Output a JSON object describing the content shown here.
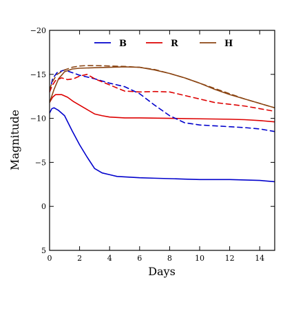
{
  "chart_data": {
    "type": "line",
    "xlabel": "Days",
    "ylabel": "Magnitude",
    "xlim": [
      0,
      15
    ],
    "ylim": [
      5,
      -20
    ],
    "y_inverted": true,
    "xticks": [
      0,
      2,
      4,
      6,
      8,
      10,
      12,
      14
    ],
    "yticks": [
      -20,
      -15,
      -10,
      -5,
      0,
      5
    ],
    "xtick_labels": [
      "0",
      "2",
      "4",
      "6",
      "8",
      "10",
      "12",
      "14"
    ],
    "ytick_labels": [
      "−20",
      "−15",
      "−10",
      "−5",
      "0",
      "5"
    ],
    "grid": false,
    "legend_position": "top",
    "legend": [
      "B",
      "R",
      "H"
    ],
    "series": [
      {
        "name": "B",
        "color": "#0000cc",
        "dash": "solid",
        "x": [
          0,
          0.15,
          0.3,
          0.6,
          1.0,
          1.5,
          2.0,
          2.5,
          3.0,
          3.5,
          4.0,
          4.5,
          5.0,
          6.0,
          7.0,
          8.0,
          9.0,
          10.0,
          11.0,
          12.0,
          13.0,
          14.0,
          15.0
        ],
        "y": [
          -10.6,
          -11.1,
          -11.2,
          -10.9,
          -10.3,
          -8.6,
          -7.0,
          -5.6,
          -4.3,
          -3.8,
          -3.6,
          -3.4,
          -3.35,
          -3.25,
          -3.2,
          -3.15,
          -3.1,
          -3.05,
          -3.05,
          -3.05,
          -3.0,
          -2.95,
          -2.8
        ]
      },
      {
        "name": "R",
        "color": "#dd0000",
        "dash": "solid",
        "x": [
          0,
          0.2,
          0.4,
          0.8,
          1.2,
          1.6,
          2.0,
          2.5,
          3.0,
          3.5,
          4.0,
          5.0,
          6.0,
          8.0,
          10.0,
          12.0,
          13.0,
          14.0,
          15.0
        ],
        "y": [
          -11.8,
          -12.4,
          -12.7,
          -12.7,
          -12.4,
          -11.9,
          -11.5,
          -11.0,
          -10.5,
          -10.3,
          -10.15,
          -10.05,
          -10.05,
          -10.0,
          -9.95,
          -9.9,
          -9.85,
          -9.75,
          -9.6
        ]
      },
      {
        "name": "H",
        "color": "#8b4513",
        "dash": "solid",
        "x": [
          0,
          0.3,
          0.6,
          1.0,
          1.5,
          2.0,
          3.0,
          4.0,
          5.0,
          6.0,
          7.0,
          8.0,
          9.0,
          10.0,
          11.0,
          12.0,
          13.0,
          14.0,
          15.0
        ],
        "y": [
          -11.8,
          -13.3,
          -14.5,
          -15.3,
          -15.6,
          -15.7,
          -15.75,
          -15.8,
          -15.85,
          -15.8,
          -15.5,
          -15.1,
          -14.6,
          -14.0,
          -13.3,
          -12.7,
          -12.2,
          -11.7,
          -11.2
        ]
      },
      {
        "name": "B dashed",
        "color": "#0000cc",
        "dash": "dashed",
        "x": [
          0,
          0.2,
          0.5,
          1.0,
          1.5,
          2.0,
          3.0,
          4.0,
          5.0,
          6.0,
          7.0,
          8.0,
          8.5,
          9.0,
          10.0,
          11.0,
          12.0,
          13.0,
          14.0,
          15.0
        ],
        "y": [
          -13.0,
          -14.5,
          -15.2,
          -15.5,
          -15.2,
          -14.9,
          -14.5,
          -14.0,
          -13.6,
          -12.8,
          -11.5,
          -10.3,
          -9.9,
          -9.5,
          -9.25,
          -9.15,
          -9.05,
          -8.95,
          -8.8,
          -8.5
        ]
      },
      {
        "name": "R dashed",
        "color": "#dd0000",
        "dash": "dashed",
        "x": [
          0,
          0.2,
          0.4,
          0.8,
          1.2,
          1.6,
          2.0,
          2.5,
          3.0,
          4.0,
          5.0,
          6.0,
          7.0,
          8.0,
          9.0,
          10.0,
          11.0,
          12.0,
          13.0,
          14.0,
          15.0
        ],
        "y": [
          -13.0,
          -13.8,
          -14.3,
          -14.6,
          -14.4,
          -14.5,
          -14.8,
          -15.0,
          -14.5,
          -13.8,
          -13.1,
          -13.0,
          -13.05,
          -13.0,
          -12.6,
          -12.2,
          -11.8,
          -11.6,
          -11.4,
          -11.1,
          -10.8
        ]
      },
      {
        "name": "H dashed",
        "color": "#8b4513",
        "dash": "dashed",
        "x": [
          0,
          0.2,
          0.5,
          1.0,
          1.5,
          2.0,
          2.5,
          3.0,
          4.0,
          5.0,
          6.0,
          7.0,
          8.0,
          9.0,
          10.0,
          11.0,
          12.0,
          13.0,
          14.0,
          15.0
        ],
        "y": [
          -13.3,
          -14.2,
          -15.0,
          -15.5,
          -15.8,
          -15.95,
          -16.0,
          -16.0,
          -15.95,
          -15.9,
          -15.8,
          -15.55,
          -15.1,
          -14.6,
          -14.0,
          -13.4,
          -12.8,
          -12.2,
          -11.7,
          -11.2
        ]
      }
    ]
  }
}
